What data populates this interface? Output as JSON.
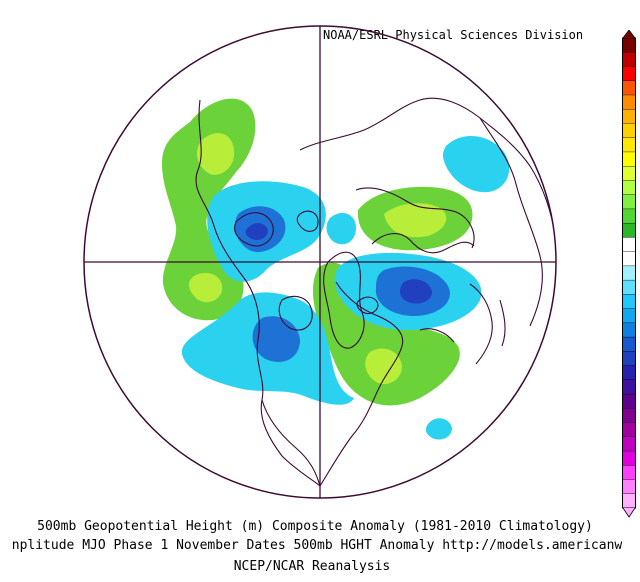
{
  "header": {
    "source": "NOAA/ESRL Physical Sciences Division"
  },
  "captions": {
    "line1": "500mb Geopotential Height (m) Composite Anomaly (1981-2010 Climatology)",
    "line2": "nplitude MJO Phase 1 November Dates 500mb HGHT Anomaly http://models.americanw",
    "line3": "NCEP/NCAR Reanalysis"
  },
  "colorbar": {
    "colors": [
      "#7a0000",
      "#c00000",
      "#ff0000",
      "#ff5500",
      "#ff8c00",
      "#ffb000",
      "#ffd000",
      "#ffe800",
      "#ffff00",
      "#e0ff30",
      "#b0ff40",
      "#80f040",
      "#50d830",
      "#2ab828",
      "#ffffff",
      "#ffffff",
      "#a0f0ff",
      "#60e0ff",
      "#20c8ff",
      "#10a8f0",
      "#1080e0",
      "#1858d0",
      "#2040c0",
      "#2a20b0",
      "#4010a0",
      "#600090",
      "#800090",
      "#a000a0",
      "#c000c0",
      "#e000e0",
      "#ff40ff",
      "#ff80ff",
      "#ffb0ff"
    ]
  },
  "colors": {
    "positive": "#6cd23a",
    "positive_strong": "#b8ee3a",
    "negative": "#2ad2f0",
    "negative_strong": "#1e72d6",
    "negative_core": "#2040c0",
    "coast": "#3c0a32"
  }
}
